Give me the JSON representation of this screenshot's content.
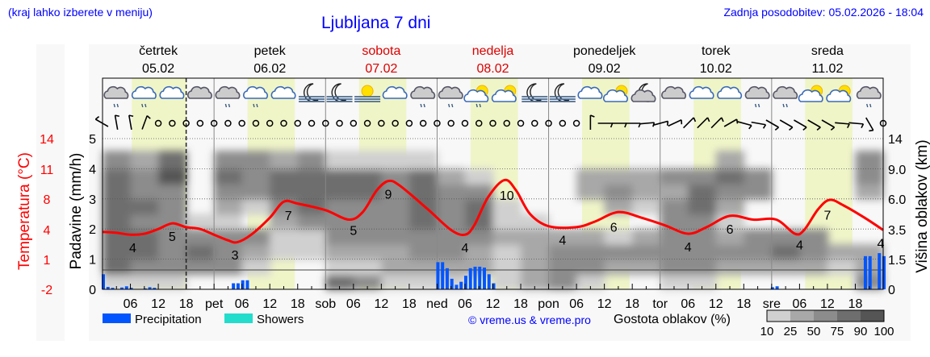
{
  "header": {
    "hint": "(kraj lahko izberete v meniju)",
    "title": "Ljubljana 7 dni",
    "updated": "Zadnja posodobitev: 05.02.2026 - 18:04"
  },
  "days": [
    {
      "name": "četrtek",
      "date": "05.02",
      "weekend": false
    },
    {
      "name": "petek",
      "date": "06.02",
      "weekend": false
    },
    {
      "name": "sobota",
      "date": "07.02",
      "weekend": true
    },
    {
      "name": "nedelja",
      "date": "08.02",
      "weekend": true
    },
    {
      "name": "ponedeljek",
      "date": "09.02",
      "weekend": false
    },
    {
      "name": "torek",
      "date": "10.02",
      "weekend": false
    },
    {
      "name": "sreda",
      "date": "11.02",
      "weekend": false
    }
  ],
  "colors": {
    "temperature": "#ff0000",
    "precipitation": "#0055ff",
    "showers": "#22ddcc",
    "daylight": "#f0f5c8",
    "weekend": "#dd0000",
    "link": "#0000ff"
  },
  "legend": {
    "precipitation": "Precipitation",
    "showers": "Showers",
    "copyright": "© vreme.us & vreme.pro",
    "cloud_density": "Gostota oblakov (%)",
    "cloud_scale": [
      "10",
      "25",
      "50",
      "75",
      "90",
      "100"
    ],
    "cloud_colors": [
      "#d0d0d0",
      "#a8a8a8",
      "#8c8c8c",
      "#6e6e6e",
      "#555555"
    ]
  },
  "icons": [
    "cloud-rain-dark",
    "cloud-rain",
    "cloud",
    "cloud-dark",
    "cloud-rain-dark",
    "cloud-rain",
    "cloud",
    "moon-fog",
    "moon-fog",
    "sun-fog",
    "cloud",
    "cloud-rain-dark",
    "cloud-rain-dark",
    "sun-cloud-rain",
    "sun-cloud",
    "moon-fog",
    "moon-fog",
    "cloud",
    "sun-cloud",
    "moon-cloud",
    "cloud-dark",
    "cloud",
    "cloud",
    "cloud-rain-dark",
    "cloud-rain-dark",
    "sun-cloud",
    "sun-cloud",
    "cloud-rain-dark"
  ],
  "wind_dirs": [
    300,
    350,
    350,
    20,
    null,
    null,
    null,
    null,
    null,
    null,
    null,
    null,
    null,
    null,
    null,
    null,
    null,
    null,
    null,
    null,
    null,
    null,
    null,
    null,
    null,
    null,
    null,
    null,
    null,
    null,
    null,
    null,
    null,
    null,
    null,
    0,
    90,
    90,
    90,
    85,
    75,
    65,
    45,
    45,
    45,
    60,
    105,
    100,
    120,
    120,
    120,
    120,
    120,
    95,
    95,
    150,
    null
  ],
  "chart_data": {
    "type": "line",
    "title": "Ljubljana 7 dni",
    "x_unit": "hour from 05.02 00:00",
    "x_ticks": [
      "",
      "06",
      "12",
      "18",
      "pet",
      "06",
      "12",
      "18",
      "sob",
      "06",
      "12",
      "18",
      "ned",
      "06",
      "12",
      "18",
      "pon",
      "06",
      "12",
      "18",
      "tor",
      "06",
      "12",
      "18",
      "sre",
      "06",
      "12",
      "18"
    ],
    "current_time_hour": 18,
    "daylight_hours": [
      7.2,
      17.4
    ],
    "left_axis": {
      "label": "Temperatura (°C)",
      "ticks": [
        "14",
        "11",
        "8",
        "4",
        "1",
        "-2"
      ],
      "range": [
        -2,
        14
      ]
    },
    "precip_axis": {
      "label": "Padavine (mm/h)",
      "ticks": [
        "0",
        "1",
        "2",
        "3",
        "4",
        "5"
      ],
      "range": [
        0,
        5
      ]
    },
    "right_axis": {
      "label": "Višina oblakov (km)",
      "ticks": [
        "0",
        "1.5",
        "3.5",
        "6.0",
        "9.0",
        "14"
      ]
    },
    "temperature": [
      [
        0,
        4.1
      ],
      [
        3,
        4.0
      ],
      [
        6,
        3.8
      ],
      [
        9,
        3.9
      ],
      [
        12,
        4.4
      ],
      [
        15,
        5.0
      ],
      [
        18,
        4.6
      ],
      [
        21,
        4.4
      ],
      [
        24,
        3.8
      ],
      [
        27,
        3.2
      ],
      [
        29,
        3.0
      ],
      [
        32,
        3.8
      ],
      [
        36,
        5.6
      ],
      [
        39,
        7.3
      ],
      [
        42,
        7.1
      ],
      [
        48,
        6.4
      ],
      [
        53,
        5.4
      ],
      [
        56,
        6.2
      ],
      [
        59,
        8.5
      ],
      [
        61.5,
        9.5
      ],
      [
        64,
        9.0
      ],
      [
        70,
        6.5
      ],
      [
        75,
        4.3
      ],
      [
        78,
        3.8
      ],
      [
        80,
        4.8
      ],
      [
        83,
        7.8
      ],
      [
        86.5,
        9.6
      ],
      [
        89,
        8.5
      ],
      [
        92,
        6.0
      ],
      [
        96,
        4.7
      ],
      [
        102,
        4.6
      ],
      [
        106,
        5.2
      ],
      [
        111,
        6.2
      ],
      [
        116,
        5.6
      ],
      [
        121,
        4.8
      ],
      [
        126,
        3.9
      ],
      [
        130,
        4.6
      ],
      [
        135,
        5.8
      ],
      [
        140,
        5.4
      ],
      [
        145,
        5.4
      ],
      [
        149,
        3.9
      ],
      [
        151,
        4.3
      ],
      [
        154,
        6.5
      ],
      [
        156.5,
        7.5
      ],
      [
        159.5,
        6.9
      ],
      [
        164,
        5.6
      ],
      [
        168,
        4.3
      ]
    ],
    "temperature_labels": [
      [
        6.5,
        "4"
      ],
      [
        15,
        "5"
      ],
      [
        28.5,
        "3"
      ],
      [
        40,
        "7"
      ],
      [
        54,
        "5"
      ],
      [
        61.5,
        "9"
      ],
      [
        78,
        "4"
      ],
      [
        87,
        "10"
      ],
      [
        99,
        "4"
      ],
      [
        110,
        "6"
      ],
      [
        126,
        "4"
      ],
      [
        135,
        "6"
      ],
      [
        150,
        "4"
      ],
      [
        156,
        "7"
      ],
      [
        168,
        "4"
      ]
    ],
    "precipitation": [
      [
        0,
        0.5
      ],
      [
        1,
        0.08
      ],
      [
        2,
        0.05
      ],
      [
        4,
        0.06
      ],
      [
        5,
        0.1
      ],
      [
        6,
        0.05
      ],
      [
        9,
        0.03
      ],
      [
        10,
        0.07
      ],
      [
        11,
        0.05
      ],
      [
        28,
        0.2
      ],
      [
        29,
        0.2
      ],
      [
        30,
        0.3
      ],
      [
        31,
        0.3
      ],
      [
        72,
        0.9
      ],
      [
        73,
        0.9
      ],
      [
        74,
        0.7
      ],
      [
        75,
        0.35
      ],
      [
        76,
        0.15
      ],
      [
        77,
        0.25
      ],
      [
        78,
        0.45
      ],
      [
        79,
        0.7
      ],
      [
        80,
        0.75
      ],
      [
        81,
        0.75
      ],
      [
        82,
        0.72
      ],
      [
        83,
        0.5
      ],
      [
        84,
        0.2
      ],
      [
        144,
        0.07
      ],
      [
        145,
        0.1
      ],
      [
        164,
        1.1
      ],
      [
        165,
        1.1
      ],
      [
        167,
        1.2
      ],
      [
        168,
        1.1
      ]
    ],
    "cloud_density_rows_note_heights_km": [
      "0-0.7",
      "0.7-1.5",
      "1.5-2.5",
      "2.5-3.5",
      "3.5-4.7",
      "4.7-6.0",
      "6.0-7.5",
      "7.5-9.0",
      "9.0-11"
    ],
    "cloud_density": [
      [
        20,
        75,
        80,
        80,
        85,
        85,
        80,
        85,
        60
      ],
      [
        15,
        70,
        80,
        75,
        70,
        75,
        60,
        70,
        40
      ],
      [
        10,
        70,
        70,
        70,
        70,
        60,
        70,
        90,
        85
      ],
      [
        0,
        70,
        85,
        60,
        20,
        0,
        0,
        0,
        0
      ],
      [
        0,
        60,
        70,
        50,
        20,
        30,
        60,
        80,
        50
      ],
      [
        0,
        20,
        40,
        50,
        0,
        20,
        60,
        70,
        60
      ],
      [
        0,
        0,
        10,
        20,
        30,
        60,
        85,
        85,
        30
      ],
      [
        0,
        0,
        10,
        20,
        50,
        80,
        85,
        80,
        60
      ],
      [
        85,
        20,
        40,
        60,
        60,
        70,
        80,
        85,
        20
      ],
      [
        70,
        20,
        40,
        50,
        60,
        70,
        85,
        80,
        20
      ],
      [
        20,
        30,
        40,
        60,
        70,
        70,
        70,
        60,
        10
      ],
      [
        10,
        30,
        50,
        70,
        85,
        85,
        85,
        75,
        10
      ],
      [
        20,
        30,
        70,
        70,
        60,
        50,
        60,
        40,
        0
      ],
      [
        0,
        30,
        40,
        60,
        75,
        80,
        50,
        20,
        0
      ],
      [
        10,
        20,
        20,
        30,
        20,
        20,
        0,
        0,
        0
      ],
      [
        40,
        30,
        40,
        30,
        10,
        0,
        0,
        0,
        0
      ],
      [
        50,
        50,
        60,
        40,
        0,
        0,
        0,
        0,
        0
      ],
      [
        10,
        50,
        50,
        40,
        0,
        0,
        30,
        30,
        0
      ],
      [
        0,
        40,
        50,
        20,
        0,
        30,
        70,
        30,
        0
      ],
      [
        0,
        40,
        50,
        30,
        0,
        10,
        40,
        30,
        0
      ],
      [
        10,
        60,
        60,
        70,
        60,
        50,
        40,
        60,
        0
      ],
      [
        10,
        50,
        60,
        60,
        70,
        80,
        80,
        50,
        0
      ],
      [
        0,
        40,
        50,
        40,
        10,
        30,
        70,
        85,
        40
      ],
      [
        0,
        40,
        60,
        50,
        0,
        0,
        50,
        60,
        0
      ],
      [
        0,
        40,
        80,
        60,
        0,
        0,
        0,
        0,
        0
      ],
      [
        0,
        30,
        60,
        50,
        0,
        0,
        0,
        0,
        0
      ],
      [
        0,
        20,
        30,
        0,
        0,
        0,
        0,
        0,
        0
      ],
      [
        60,
        40,
        30,
        0,
        0,
        0,
        40,
        60,
        70
      ]
    ]
  }
}
